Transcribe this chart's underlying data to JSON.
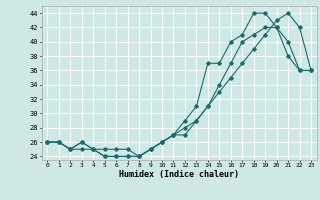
{
  "xlabel": "Humidex (Indice chaleur)",
  "background_color": "#cde8e5",
  "grid_color": "#ffffff",
  "line_color": "#1a6b6b",
  "xlim": [
    -0.5,
    23.5
  ],
  "ylim": [
    23.5,
    45.0
  ],
  "xticks": [
    0,
    1,
    2,
    3,
    4,
    5,
    6,
    7,
    8,
    9,
    10,
    11,
    12,
    13,
    14,
    15,
    16,
    17,
    18,
    19,
    20,
    21,
    22,
    23
  ],
  "yticks": [
    24,
    26,
    28,
    30,
    32,
    34,
    36,
    38,
    40,
    42,
    44
  ],
  "series1_x": [
    0,
    1,
    2,
    3,
    4,
    5,
    6,
    7,
    8,
    9,
    10,
    11,
    12,
    13,
    14,
    15,
    16,
    17,
    18,
    19,
    20,
    21,
    22,
    23
  ],
  "series1_y": [
    26,
    26,
    25,
    26,
    25,
    25,
    25,
    25,
    24,
    25,
    26,
    27,
    27,
    29,
    31,
    33,
    35,
    37,
    39,
    41,
    43,
    44,
    42,
    36
  ],
  "series2_x": [
    0,
    1,
    2,
    3,
    4,
    5,
    6,
    7,
    8,
    9,
    10,
    11,
    12,
    13,
    14,
    15,
    16,
    17,
    18,
    19,
    20,
    21,
    22,
    23
  ],
  "series2_y": [
    26,
    26,
    25,
    26,
    25,
    24,
    24,
    24,
    24,
    25,
    26,
    27,
    29,
    31,
    37,
    37,
    40,
    41,
    44,
    44,
    42,
    38,
    36,
    36
  ],
  "series3_x": [
    0,
    1,
    2,
    3,
    4,
    5,
    6,
    7,
    8,
    9,
    10,
    11,
    12,
    13,
    14,
    15,
    16,
    17,
    18,
    19,
    20,
    21,
    22,
    23
  ],
  "series3_y": [
    26,
    26,
    25,
    25,
    25,
    24,
    24,
    24,
    24,
    25,
    26,
    27,
    28,
    29,
    31,
    34,
    37,
    40,
    41,
    42,
    42,
    40,
    36,
    36
  ]
}
